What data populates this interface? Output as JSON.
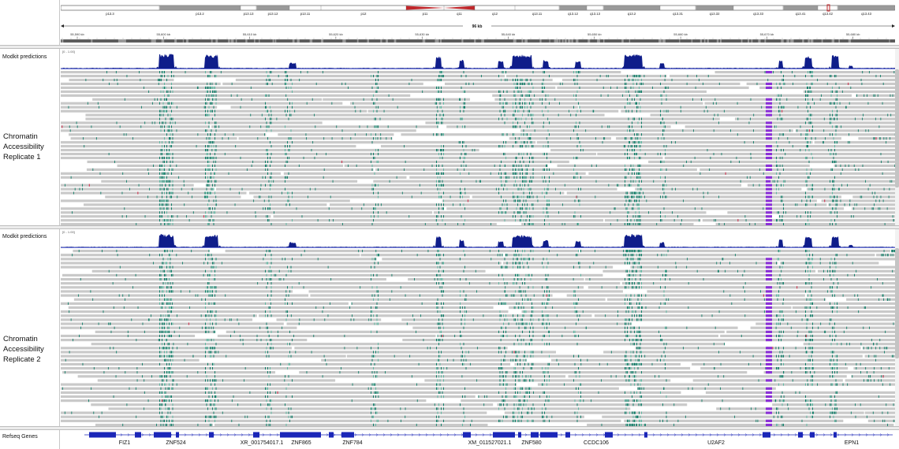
{
  "ideogram": {
    "bands": [
      {
        "label": "p13.3",
        "stain": "white"
      },
      {
        "label": "p13.2",
        "stain": "grey"
      },
      {
        "label": "p13.13",
        "stain": "white"
      },
      {
        "label": "p13.12",
        "stain": "grey"
      },
      {
        "label": "p13.11",
        "stain": "white"
      },
      {
        "label": "p12",
        "stain": "white"
      },
      {
        "label": "p11",
        "stain": "centromere"
      },
      {
        "label": "q11",
        "stain": "centromere"
      },
      {
        "label": "q12",
        "stain": "white"
      },
      {
        "label": "q13.11",
        "stain": "white"
      },
      {
        "label": "q13.12",
        "stain": "grey"
      },
      {
        "label": "q13.13",
        "stain": "white"
      },
      {
        "label": "q13.2",
        "stain": "grey"
      },
      {
        "label": "q13.31",
        "stain": "white"
      },
      {
        "label": "q13.32",
        "stain": "grey"
      },
      {
        "label": "q13.33",
        "stain": "white"
      },
      {
        "label": "q13.41",
        "stain": "grey"
      },
      {
        "label": "q13.42",
        "stain": "white"
      },
      {
        "label": "q13.43",
        "stain": "grey"
      }
    ]
  },
  "ruler": {
    "span_label": "96 kb",
    "ticks": [
      "55,590 kb",
      "55,600 kb",
      "55,610 kb",
      "55,620 kb",
      "55,630 kb",
      "55,640 kb",
      "55,650 kb",
      "55,660 kb",
      "55,670 kb",
      "55,680 kb"
    ]
  },
  "tracks": {
    "replicate1": {
      "coverage_label": "Modkit predictions",
      "range_label": "[0 - 1.00]",
      "name_line1": "Chromatin",
      "name_line2": "Accessibility",
      "name_line3": "Replicate 1"
    },
    "replicate2": {
      "coverage_label": "Modkit predictions",
      "range_label": "[0 - 1.00]",
      "name_line1": "Chromatin",
      "name_line2": "Accessibility",
      "name_line3": "Replicate 2"
    }
  },
  "genes": {
    "track_label": "Refseq Genes",
    "names": [
      "FIZ1",
      "ZNF524",
      "XR_001754017.1",
      "ZNF865",
      "ZNF784",
      "XM_011527021.1",
      "ZNF580",
      "CCDC106",
      "U2AF2",
      "EPN1"
    ]
  },
  "colors": {
    "coverage": "#0f1d8a",
    "read": "#c9c9c9",
    "accessible": "#12806a",
    "accessible_light": "#5fb9a3",
    "highlight": "#8a2fd6",
    "centromere": "#c0262a",
    "gene": "#1b27b8",
    "mismatch": "#d0405a"
  }
}
